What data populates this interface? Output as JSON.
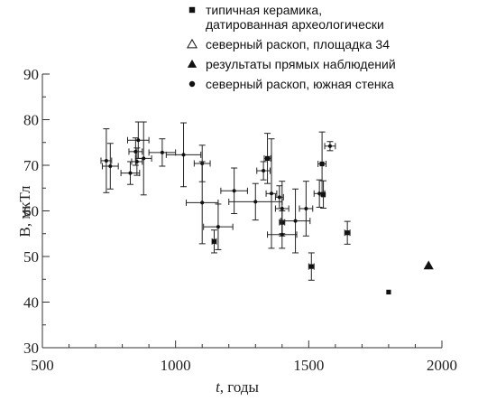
{
  "chart_data": {
    "type": "scatter",
    "xlabel_italic": "t",
    "xlabel_rest": ", годы",
    "ylabel": "B, мкТл",
    "xlim": [
      500,
      2000
    ],
    "ylim": [
      30,
      90
    ],
    "xticks": [
      500,
      1000,
      1500,
      2000
    ],
    "yticks": [
      30,
      40,
      50,
      60,
      70,
      80,
      90
    ],
    "grid": false,
    "legend_position": "top-right",
    "legend": [
      {
        "marker": "square",
        "label": [
          "типичная керамика,",
          "датированная археологически"
        ]
      },
      {
        "marker": "triangle-open",
        "label": [
          "северный раскоп, площадка 34"
        ]
      },
      {
        "marker": "triangle-filled",
        "label": [
          "результаты прямых наблюдений"
        ]
      },
      {
        "marker": "circle",
        "label": [
          "северный раскоп, южная стенка"
        ]
      }
    ],
    "points": [
      {
        "x": 740,
        "y": 71.0,
        "xerr": 20,
        "yerr": 7,
        "marker": "circle"
      },
      {
        "x": 755,
        "y": 69.8,
        "xerr": 30,
        "yerr": 5,
        "marker": "circle"
      },
      {
        "x": 830,
        "y": 68.3,
        "xerr": 35,
        "yerr": 2.5,
        "marker": "circle"
      },
      {
        "x": 850,
        "y": 73.0,
        "xerr": 25,
        "yerr": 3,
        "marker": "circle"
      },
      {
        "x": 855,
        "y": 70.8,
        "xerr": 20,
        "yerr": 3,
        "marker": "circle"
      },
      {
        "x": 860,
        "y": 75.5,
        "xerr": 40,
        "yerr": 4,
        "marker": "circle"
      },
      {
        "x": 880,
        "y": 71.5,
        "xerr": 30,
        "yerr": 8,
        "marker": "circle"
      },
      {
        "x": 950,
        "y": 72.8,
        "xerr": 50,
        "yerr": 3,
        "marker": "circle"
      },
      {
        "x": 1030,
        "y": 72.3,
        "xerr": 65,
        "yerr": 7,
        "marker": "circle"
      },
      {
        "x": 1100,
        "y": 70.4,
        "xerr": 30,
        "yerr": 4,
        "marker": "circle"
      },
      {
        "x": 1100,
        "y": 61.8,
        "xerr": 60,
        "yerr": 9,
        "marker": "circle"
      },
      {
        "x": 1145,
        "y": 53.3,
        "xerr": 8,
        "yerr": 2.5,
        "marker": "square"
      },
      {
        "x": 1160,
        "y": 56.5,
        "xerr": 55,
        "yerr": 5,
        "marker": "circle"
      },
      {
        "x": 1220,
        "y": 64.4,
        "xerr": 50,
        "yerr": 5,
        "marker": "circle"
      },
      {
        "x": 1300,
        "y": 62.0,
        "xerr": 100,
        "yerr": 4,
        "marker": "circle"
      },
      {
        "x": 1330,
        "y": 68.8,
        "xerr": 25,
        "yerr": 2,
        "marker": "circle"
      },
      {
        "x": 1345,
        "y": 71.5,
        "xerr": 12,
        "yerr": 5.5,
        "marker": "square"
      },
      {
        "x": 1360,
        "y": 63.8,
        "xerr": 20,
        "yerr": 12,
        "marker": "circle"
      },
      {
        "x": 1390,
        "y": 63.0,
        "xerr": 15,
        "yerr": 2.5,
        "marker": "circle"
      },
      {
        "x": 1400,
        "y": 60.5,
        "xerr": 25,
        "yerr": 6,
        "marker": "circle"
      },
      {
        "x": 1400,
        "y": 57.5,
        "xerr": 10,
        "yerr": 2.5,
        "marker": "square"
      },
      {
        "x": 1400,
        "y": 54.8,
        "xerr": 55,
        "yerr": 3,
        "marker": "circle"
      },
      {
        "x": 1450,
        "y": 57.8,
        "xerr": 55,
        "yerr": 7,
        "marker": "circle"
      },
      {
        "x": 1490,
        "y": 60.5,
        "xerr": 25,
        "yerr": 6,
        "marker": "circle"
      },
      {
        "x": 1510,
        "y": 47.8,
        "xerr": 10,
        "yerr": 3,
        "marker": "square"
      },
      {
        "x": 1540,
        "y": 63.8,
        "xerr": 20,
        "yerr": 3,
        "marker": "circle"
      },
      {
        "x": 1550,
        "y": 70.3,
        "xerr": 15,
        "yerr": 7,
        "marker": "square"
      },
      {
        "x": 1555,
        "y": 63.6,
        "xerr": 5,
        "yerr": 3,
        "marker": "square"
      },
      {
        "x": 1580,
        "y": 74.2,
        "xerr": 20,
        "yerr": 1,
        "marker": "circle"
      },
      {
        "x": 1645,
        "y": 55.2,
        "xerr": 10,
        "yerr": 2.5,
        "marker": "square"
      },
      {
        "x": 1800,
        "y": 42.2,
        "xerr": 0,
        "yerr": 0,
        "marker": "square"
      },
      {
        "x": 1950,
        "y": 48.0,
        "xerr": 0,
        "yerr": 0,
        "marker": "triangle-filled"
      }
    ]
  }
}
